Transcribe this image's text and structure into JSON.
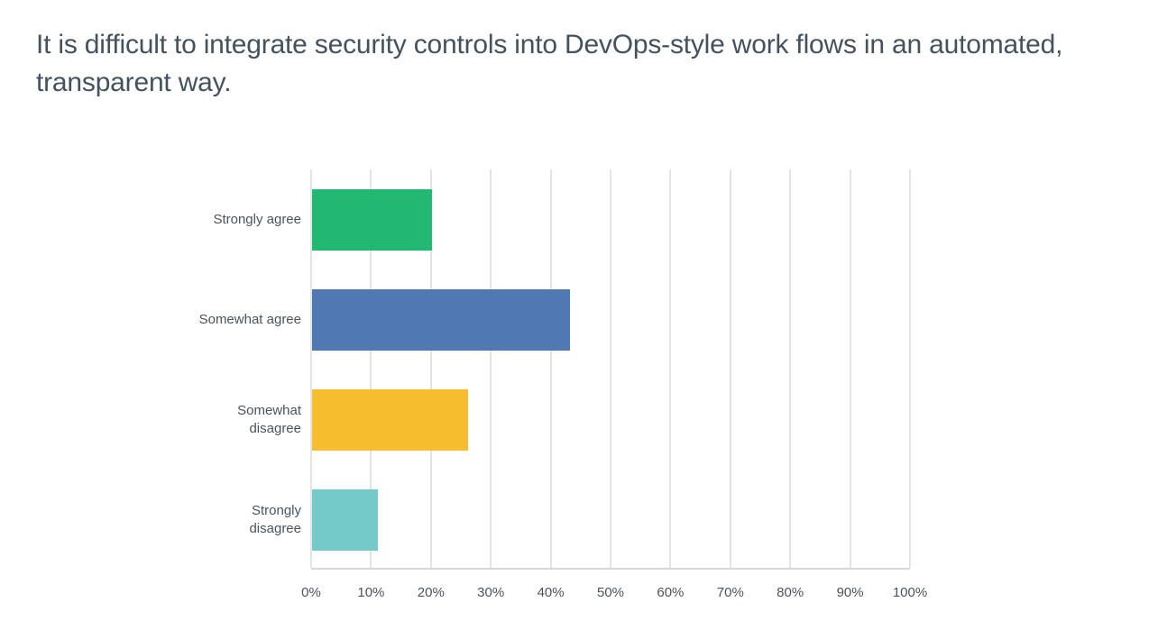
{
  "title": "It is difficult to integrate security controls into DevOps-style work flows in an automated, transparent way.",
  "colors": {
    "background": "#ffffff",
    "title_text": "#44525f",
    "axis_text": "#47545f",
    "gridline": "#e4e4e4",
    "axis_line": "#d7d7d7"
  },
  "chart_data": {
    "type": "bar",
    "orientation": "horizontal",
    "title": "It is difficult to integrate security controls into DevOps-style work flows in an automated, transparent way.",
    "categories": [
      "Strongly agree",
      "Somewhat agree",
      "Somewhat disagree",
      "Strongly disagree"
    ],
    "values": [
      20,
      43,
      26,
      11
    ],
    "unit": "%",
    "bar_colors": [
      "#22b873",
      "#5079b3",
      "#f6bd2e",
      "#74c9c9"
    ],
    "xlabel": "",
    "ylabel": "",
    "xlim": [
      0,
      100
    ],
    "xticks": [
      "0%",
      "10%",
      "20%",
      "30%",
      "40%",
      "50%",
      "60%",
      "70%",
      "80%",
      "90%",
      "100%"
    ],
    "grid": "vertical-only",
    "legend": "none"
  }
}
